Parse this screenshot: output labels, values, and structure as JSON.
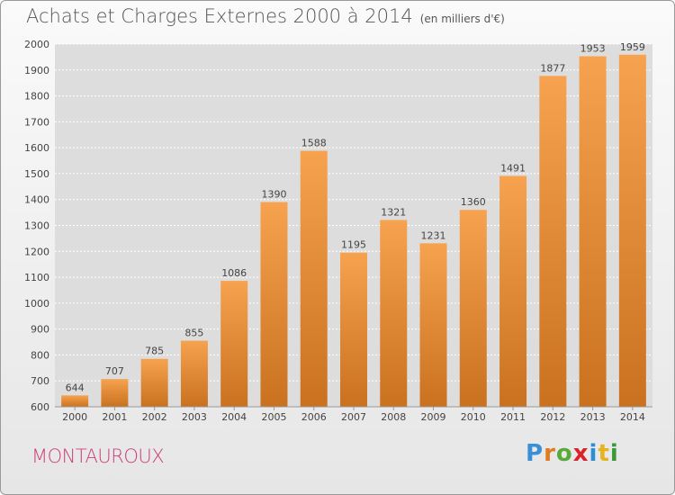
{
  "header": {
    "title": "Achats et Charges Externes 2000 à 2014",
    "subtitle": "(en milliers d'€)"
  },
  "footer": {
    "commune": "MONTAUROUX",
    "logo_letters": [
      "P",
      "r",
      "o",
      "x",
      "i",
      "t",
      "i"
    ],
    "logo_colors": [
      "#3a8fd6",
      "#e07b1f",
      "#5aaa3a",
      "#d8232a",
      "#2c8fd6",
      "#e6b31e",
      "#3a9a3a"
    ]
  },
  "chart_data": {
    "type": "bar",
    "title": "Achats et Charges Externes 2000 à 2014",
    "subtitle": "(en milliers d'€)",
    "categories": [
      "2000",
      "2001",
      "2002",
      "2003",
      "2004",
      "2005",
      "2006",
      "2007",
      "2008",
      "2009",
      "2010",
      "2011",
      "2012",
      "2013",
      "2014"
    ],
    "values": [
      644,
      707,
      785,
      855,
      1086,
      1390,
      1588,
      1195,
      1321,
      1231,
      1360,
      1491,
      1877,
      1953,
      1959
    ],
    "yticks": [
      600,
      700,
      800,
      900,
      1000,
      1100,
      1200,
      1300,
      1400,
      1500,
      1600,
      1700,
      1800,
      1900,
      2000
    ],
    "ylim": [
      600,
      2000
    ],
    "grid": true,
    "bar_color_light": "#f6a24f",
    "bar_color_dark": "#c9711f"
  }
}
